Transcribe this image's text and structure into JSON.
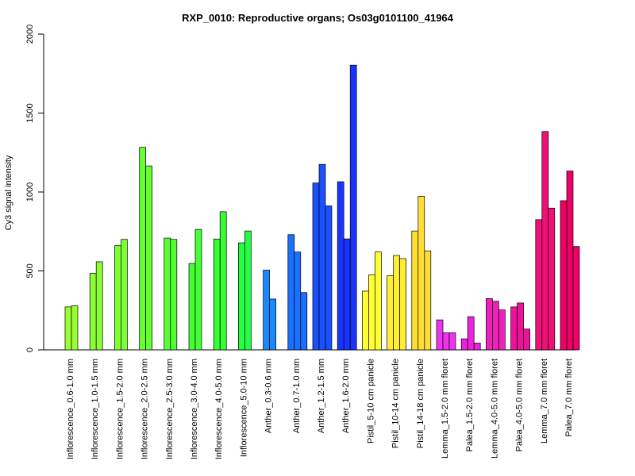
{
  "chart_data": {
    "type": "bar",
    "title": "RXP_0010: Reproductive organs; Os03g0101100_41964",
    "xlabel": "",
    "ylabel": "Cy3 signal intensity",
    "ylim": [
      0,
      2000
    ],
    "yticks": [
      0,
      500,
      1000,
      1500,
      2000
    ],
    "groups": [
      {
        "label": "Inflorescence_0.6-1.0 mm",
        "color": "#99ff33",
        "values": [
          272,
          280
        ]
      },
      {
        "label": "Inflorescence_1.0-1.5 mm",
        "color": "#8cff33",
        "values": [
          485,
          558
        ]
      },
      {
        "label": "Inflorescence_1.5-2.0 mm",
        "color": "#7cff33",
        "values": [
          660,
          700
        ]
      },
      {
        "label": "Inflorescence_2.0-2.5 mm",
        "color": "#66ff33",
        "values": [
          1283,
          1165
        ]
      },
      {
        "label": "Inflorescence_2.5-3.0 mm",
        "color": "#55ff33",
        "values": [
          708,
          700
        ]
      },
      {
        "label": "Inflorescence_3.0-4.0 mm",
        "color": "#44ff33",
        "values": [
          547,
          763
        ]
      },
      {
        "label": "Inflorescence_4.0-5.0 mm",
        "color": "#33ff33",
        "values": [
          702,
          875
        ]
      },
      {
        "label": "Inflorescence_5.0-10 mm",
        "color": "#22ff44",
        "values": [
          678,
          753
        ]
      },
      {
        "label": "Anther_0.3-0.6 mm",
        "color": "#1a88ff",
        "values": [
          505,
          322
        ]
      },
      {
        "label": "Anther_0.7-1.0 mm",
        "color": "#1a70ff",
        "values": [
          730,
          620,
          363
        ]
      },
      {
        "label": "Anther_1.2-1.5 mm",
        "color": "#1a50ff",
        "values": [
          1057,
          1175,
          912
        ]
      },
      {
        "label": "Anther_1.6-2.0 mm",
        "color": "#1a33ff",
        "values": [
          1065,
          703,
          1803
        ]
      },
      {
        "label": "Pistil_5-10 cm panicle",
        "color": "#ffff33",
        "values": [
          372,
          475,
          620
        ]
      },
      {
        "label": "Pistil_10-14 cm panicle",
        "color": "#ffee33",
        "values": [
          470,
          598,
          578
        ]
      },
      {
        "label": "Pistil_14-18 cm panicle",
        "color": "#ffdd33",
        "values": [
          753,
          973,
          627
        ]
      },
      {
        "label": "Lemma_1.5-2.0 mm floret",
        "color": "#ee33ee",
        "values": [
          190,
          108,
          108
        ]
      },
      {
        "label": "Palea_1.5-2.0 mm floret",
        "color": "#ee22dd",
        "values": [
          70,
          210,
          43
        ]
      },
      {
        "label": "Lemma_4.0-5.0 mm floret",
        "color": "#ee22bb",
        "values": [
          325,
          308,
          253
        ]
      },
      {
        "label": "Palea_4.0-5.0 mm floret",
        "color": "#ee1199",
        "values": [
          272,
          297,
          132
        ]
      },
      {
        "label": "Lemma_7.0 mm floret",
        "color": "#ee1177",
        "values": [
          825,
          1383,
          898
        ]
      },
      {
        "label": "Palea_7.0 mm floret",
        "color": "#ee0066",
        "values": [
          945,
          1133,
          655
        ]
      }
    ]
  }
}
